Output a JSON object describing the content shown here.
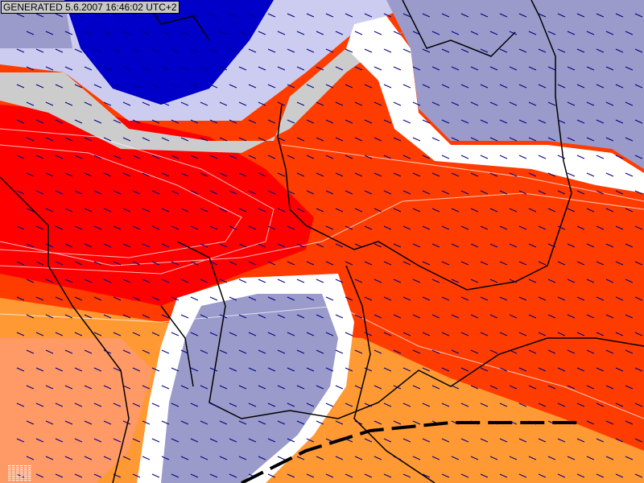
{
  "header": {
    "generated_label": "GENERATED 5.6.2007 16:46:02 UTC+2"
  },
  "map": {
    "colors": {
      "deep_blue": "#0000c8",
      "lavender": "#9a9acb",
      "light_lavender": "#ccccf0",
      "grey": "#cccccc",
      "white": "#ffffff",
      "red": "#ff0000",
      "orange_red": "#ff3c00",
      "orange": "#ff9933",
      "light_orange": "#ff9966",
      "wind_arrow": "#000080",
      "border": "#000000"
    },
    "wind_direction": "north-west"
  }
}
